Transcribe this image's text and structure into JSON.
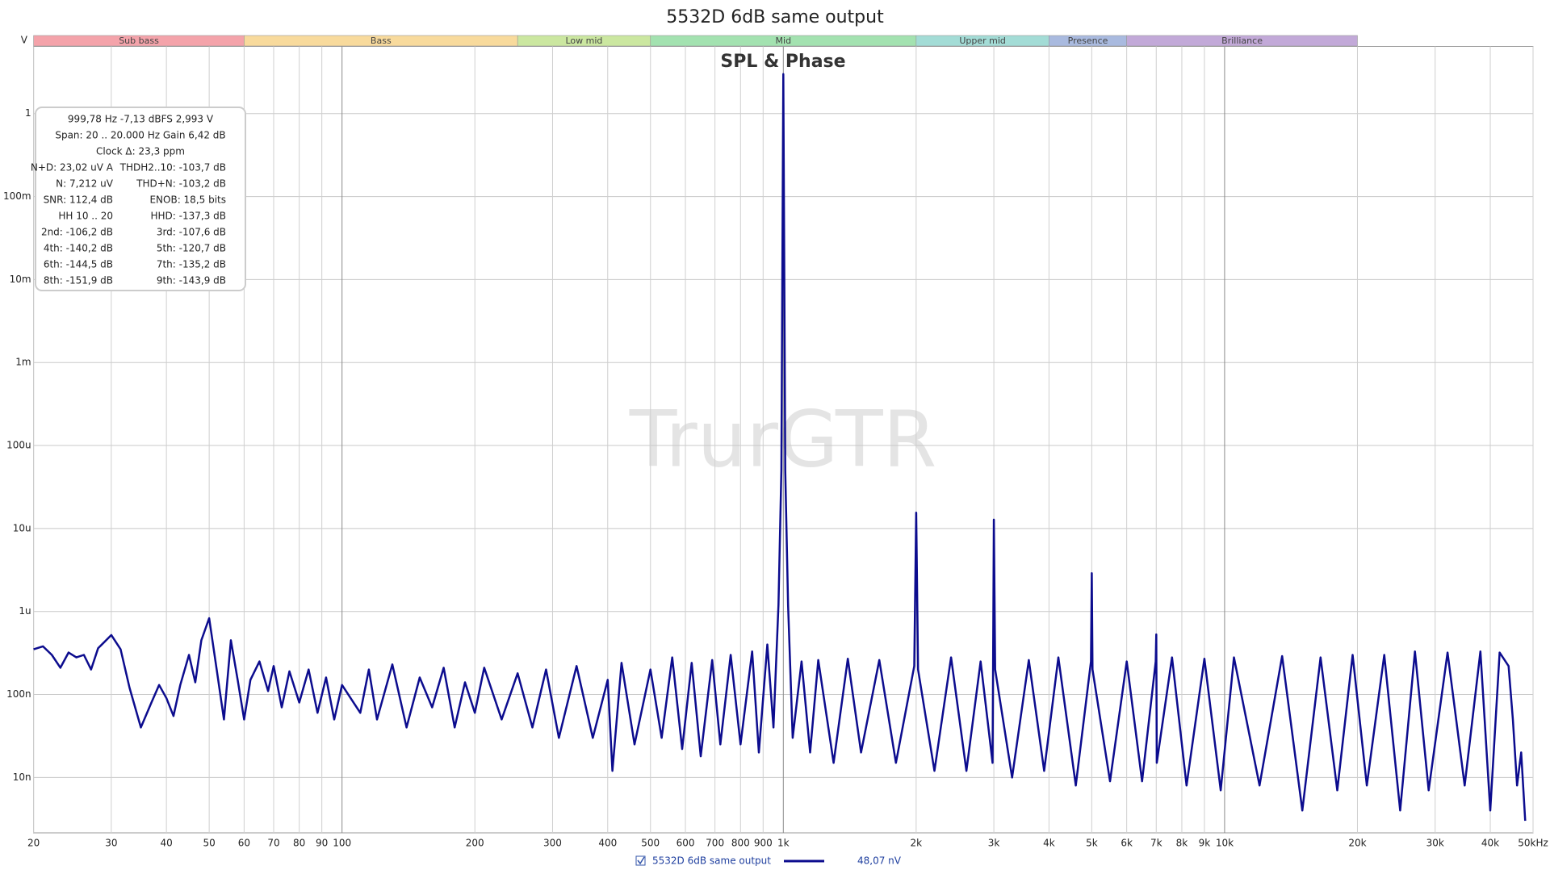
{
  "chart_data": {
    "type": "line",
    "title": "5532D 6dB same output",
    "subtitle": "SPL & Phase",
    "watermark": "TrurGTR",
    "y_unit": "V",
    "log_x": true,
    "log_y": true,
    "grid": true,
    "xlim": [
      20,
      50000
    ],
    "ylim": [
      2.15e-09,
      6.45
    ],
    "xticks": [
      20,
      30,
      40,
      50,
      60,
      70,
      80,
      90,
      100,
      200,
      300,
      400,
      500,
      600,
      700,
      800,
      900,
      {
        "value": 1000,
        "label": "1k"
      },
      {
        "value": 2000,
        "label": "2k"
      },
      {
        "value": 3000,
        "label": "3k"
      },
      {
        "value": 4000,
        "label": "4k"
      },
      {
        "value": 5000,
        "label": "5k"
      },
      {
        "value": 6000,
        "label": "6k"
      },
      {
        "value": 7000,
        "label": "7k"
      },
      {
        "value": 8000,
        "label": "8k"
      },
      {
        "value": 9000,
        "label": "9k"
      },
      {
        "value": 10000,
        "label": "10k"
      },
      {
        "value": 20000,
        "label": "20k"
      },
      {
        "value": 30000,
        "label": "30k"
      },
      {
        "value": 40000,
        "label": "40k"
      },
      {
        "value": 50000,
        "label": "50kHz"
      }
    ],
    "yticks": [
      {
        "value": 1e-08,
        "label": "10n"
      },
      {
        "value": 1e-07,
        "label": "100n"
      },
      {
        "value": 1e-06,
        "label": "1u"
      },
      {
        "value": 1e-05,
        "label": "10u"
      },
      {
        "value": 0.0001,
        "label": "100u"
      },
      {
        "value": 0.001,
        "label": "1m"
      },
      {
        "value": 0.01,
        "label": "10m"
      },
      {
        "value": 0.1,
        "label": "100m"
      },
      1
    ],
    "bands": [
      {
        "name": "Sub bass",
        "from": 20,
        "to": 60,
        "color": "#f4a3aa"
      },
      {
        "name": "Bass",
        "from": 60,
        "to": 250,
        "color": "#f8da9c"
      },
      {
        "name": "Low mid",
        "from": 250,
        "to": 500,
        "color": "#cbe7a0"
      },
      {
        "name": "Mid",
        "from": 500,
        "to": 2000,
        "color": "#a3e2b0"
      },
      {
        "name": "Upper mid",
        "from": 2000,
        "to": 4000,
        "color": "#a3dcd6"
      },
      {
        "name": "Presence",
        "from": 4000,
        "to": 6000,
        "color": "#a9badf"
      },
      {
        "name": "Brilliance",
        "from": 6000,
        "to": 20000,
        "color": "#c2a9d8"
      }
    ],
    "cursor_label": "48,07 nV",
    "info_box": {
      "lines": [
        "999,78 Hz  -7,13 dBFS  2,993 V",
        "Span: 20 .. 20.000 Hz   Gain 6,42 dB",
        "Clock Δ: 23,3 ppm"
      ],
      "rows": [
        [
          "N+D: 23,02 uV A",
          "THDH2..10: -103,7 dB"
        ],
        [
          "N: 7,212 uV",
          "THD+N: -103,2 dB"
        ],
        [
          "SNR:  112,4 dB",
          "ENOB:  18,5 bits"
        ],
        [
          "HH 10 .. 20",
          "HHD: -137,3 dB"
        ],
        [
          "2nd: -106,2 dB",
          "3rd: -107,6 dB"
        ],
        [
          "4th: -140,2 dB",
          "5th: -120,7 dB"
        ],
        [
          "6th: -144,5 dB",
          "7th: -135,2 dB"
        ],
        [
          "8th: -151,9 dB",
          "9th: -143,9 dB"
        ]
      ]
    },
    "x": [
      20,
      21,
      22,
      23,
      24,
      25,
      26,
      27,
      28,
      30,
      31.5,
      33,
      35,
      37,
      38.5,
      40,
      41.5,
      43,
      45,
      46.5,
      48,
      50,
      52,
      54,
      56,
      58,
      60,
      62,
      65,
      68,
      70,
      73,
      76,
      80,
      84,
      88,
      92,
      96,
      100,
      110,
      115,
      120,
      130,
      140,
      150,
      160,
      170,
      180,
      190,
      200,
      210,
      230,
      250,
      270,
      290,
      310,
      340,
      370,
      400,
      410,
      430,
      460,
      500,
      530,
      560,
      590,
      620,
      650,
      690,
      720,
      760,
      800,
      850,
      880,
      920,
      950,
      975,
      990,
      1000,
      1010,
      1025,
      1050,
      1100,
      1150,
      1200,
      1300,
      1400,
      1500,
      1650,
      1800,
      1980,
      2000,
      2020,
      2200,
      2400,
      2600,
      2800,
      2980,
      3000,
      3020,
      3300,
      3600,
      3900,
      4200,
      4600,
      4980,
      5000,
      5020,
      5500,
      6000,
      6500,
      6980,
      7000,
      7020,
      7600,
      8200,
      9000,
      9800,
      10500,
      12000,
      13500,
      15000,
      16500,
      18000,
      19500,
      21000,
      23000,
      25000,
      27000,
      29000,
      32000,
      35000,
      38000,
      40000,
      42000,
      44000,
      45000,
      46000,
      47000,
      48000
    ],
    "series": [
      {
        "name": "5532D 6dB same output",
        "color": "#0c0c8e",
        "values": [
          3.5e-07,
          3.8e-07,
          3e-07,
          2.1e-07,
          3.2e-07,
          2.8e-07,
          3e-07,
          2e-07,
          3.6e-07,
          5.2e-07,
          3.5e-07,
          1.2e-07,
          4e-08,
          8e-08,
          1.3e-07,
          9e-08,
          5.5e-08,
          1.3e-07,
          3e-07,
          1.4e-07,
          4.5e-07,
          8.3e-07,
          2e-07,
          5e-08,
          4.5e-07,
          1.5e-07,
          5e-08,
          1.5e-07,
          2.5e-07,
          1.1e-07,
          2.2e-07,
          7e-08,
          1.9e-07,
          8e-08,
          2e-07,
          6e-08,
          1.6e-07,
          5e-08,
          1.3e-07,
          6e-08,
          2e-07,
          5e-08,
          2.3e-07,
          4e-08,
          1.6e-07,
          7e-08,
          2.1e-07,
          4e-08,
          1.4e-07,
          6e-08,
          2.1e-07,
          5e-08,
          1.8e-07,
          4e-08,
          2e-07,
          3e-08,
          2.2e-07,
          3e-08,
          1.5e-07,
          1.2e-08,
          2.4e-07,
          2.5e-08,
          2e-07,
          3e-08,
          2.8e-07,
          2.2e-08,
          2.4e-07,
          1.8e-08,
          2.6e-07,
          2.5e-08,
          3e-07,
          2.5e-08,
          3.3e-07,
          2e-08,
          4e-07,
          4e-08,
          1.2e-06,
          5e-05,
          2.993,
          5e-05,
          1.2e-06,
          3e-08,
          2.5e-07,
          2e-08,
          2.6e-07,
          1.5e-08,
          2.7e-07,
          2e-08,
          2.6e-07,
          1.5e-08,
          2.2e-07,
          1.55e-05,
          2e-07,
          1.2e-08,
          2.8e-07,
          1.2e-08,
          2.5e-07,
          1.5e-08,
          1.28e-05,
          2e-07,
          1e-08,
          2.6e-07,
          1.2e-08,
          2.8e-07,
          8e-09,
          2.5e-07,
          2.9e-06,
          2e-07,
          9e-09,
          2.5e-07,
          9e-09,
          2.5e-07,
          5.3e-07,
          1.5e-08,
          2.8e-07,
          8e-09,
          2.7e-07,
          7e-09,
          2.8e-07,
          8e-09,
          2.9e-07,
          4e-09,
          2.8e-07,
          7e-09,
          3e-07,
          8e-09,
          3e-07,
          4e-09,
          3.3e-07,
          7e-09,
          3.2e-07,
          8e-09,
          3.3e-07,
          4e-09,
          3.2e-07,
          2.2e-07,
          5e-08,
          8e-09,
          2e-08,
          3e-09
        ]
      }
    ]
  }
}
